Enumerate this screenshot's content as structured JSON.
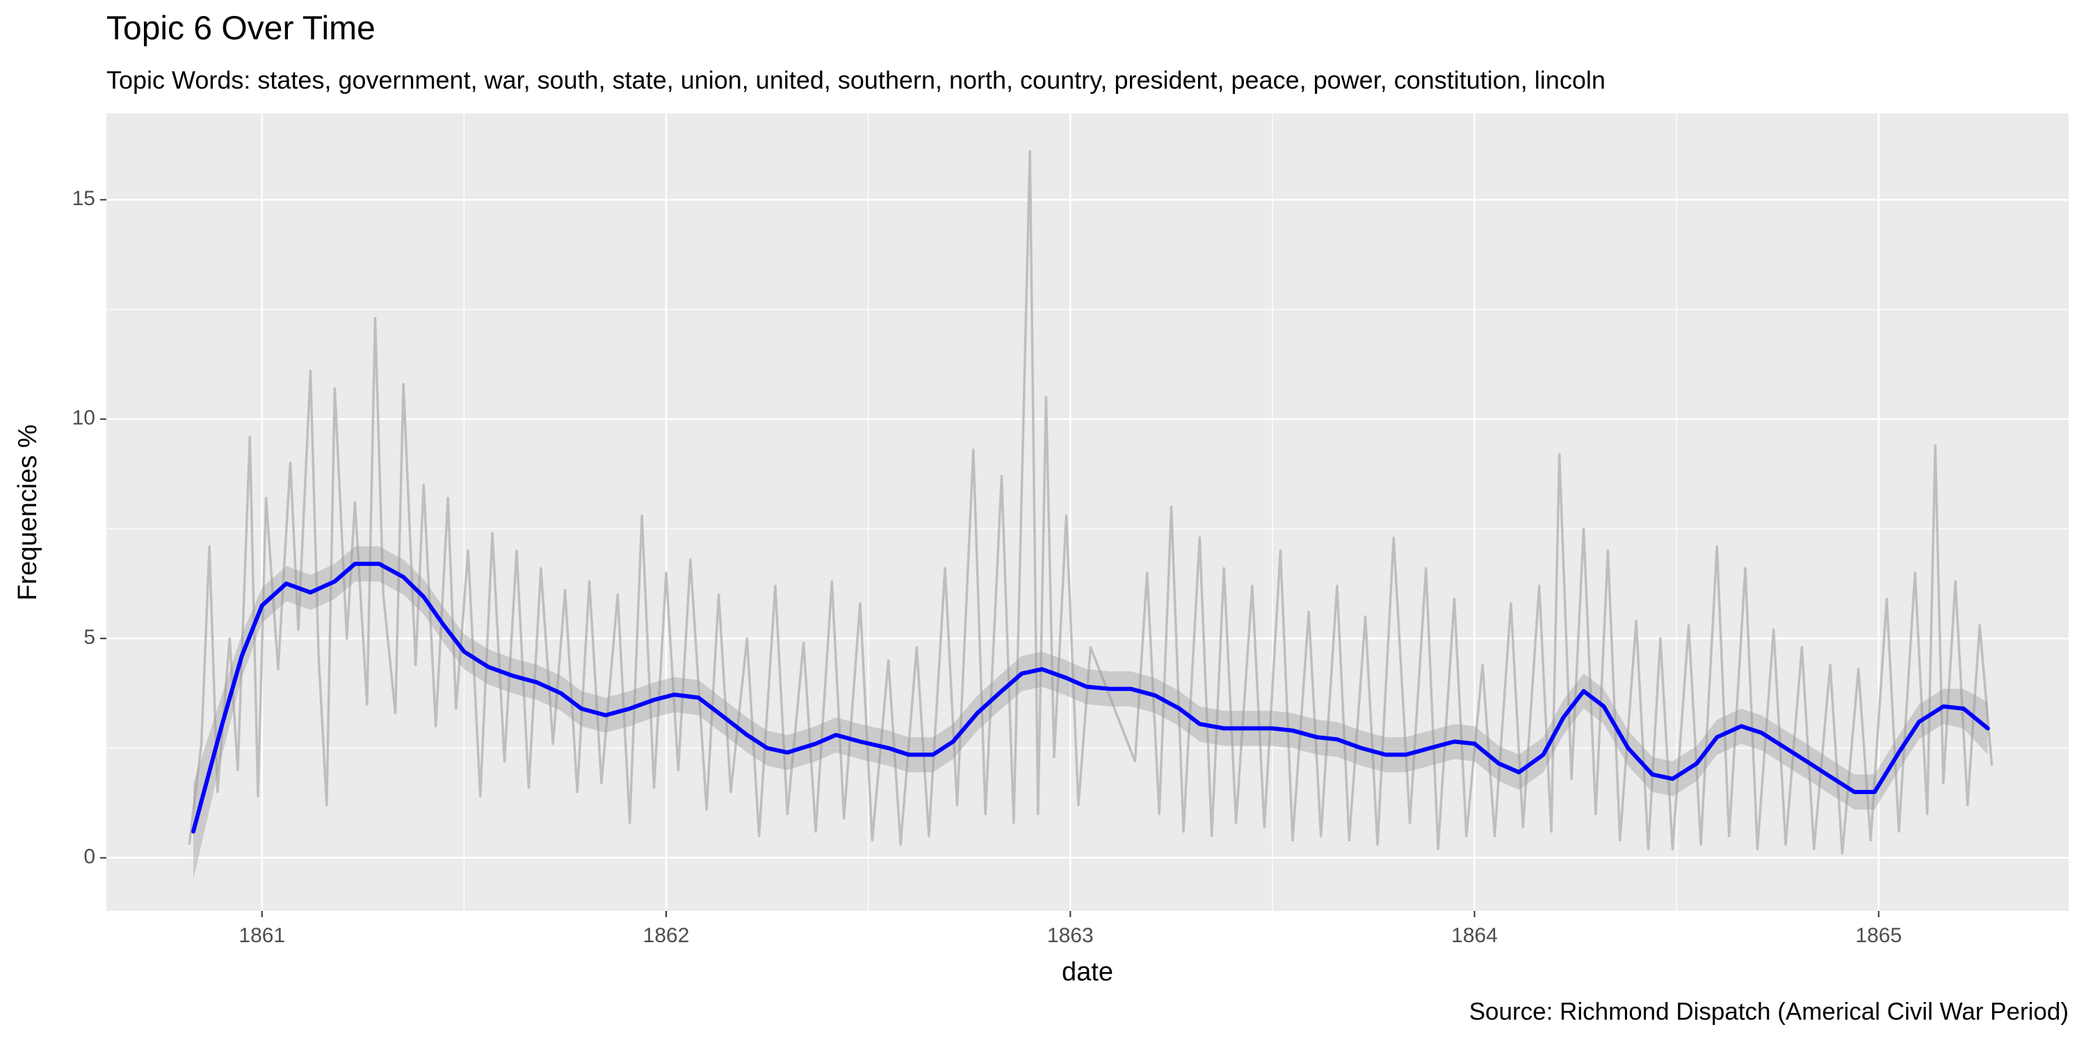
{
  "chart_data": {
    "type": "line",
    "title": "Topic 6 Over Time",
    "subtitle": "Topic Words: states, government, war, south, state, union, united, southern, north, country, president, peace, power, constitution, lincoln",
    "caption": "Source: Richmond Dispatch (Americal Civil War Period)",
    "x_label": "date",
    "y_label": "Frequencies %",
    "xlim": [
      1860.615,
      1865.47
    ],
    "ylim": [
      -1.21,
      16.97
    ],
    "xticks": [
      1861,
      1862,
      1863,
      1864,
      1865
    ],
    "yticks": [
      0,
      5,
      10,
      15
    ],
    "x_minor_ticks": [
      1861.5,
      1862.5,
      1863.5,
      1864.5
    ],
    "y_minor_ticks": [
      2.5,
      7.5,
      12.5
    ],
    "grid": true,
    "raw": {
      "color": "#bebebe",
      "x": [
        1860.82,
        1860.85,
        1860.87,
        1860.89,
        1860.92,
        1860.94,
        1860.97,
        1860.99,
        1861.01,
        1861.04,
        1861.07,
        1861.09,
        1861.12,
        1861.14,
        1861.16,
        1861.18,
        1861.21,
        1861.23,
        1861.26,
        1861.28,
        1861.3,
        1861.33,
        1861.35,
        1861.38,
        1861.4,
        1861.43,
        1861.46,
        1861.48,
        1861.51,
        1861.54,
        1861.57,
        1861.6,
        1861.63,
        1861.66,
        1861.69,
        1861.72,
        1861.75,
        1861.78,
        1861.81,
        1861.84,
        1861.88,
        1861.91,
        1861.94,
        1861.97,
        1862.0,
        1862.03,
        1862.06,
        1862.1,
        1862.13,
        1862.16,
        1862.2,
        1862.23,
        1862.27,
        1862.3,
        1862.34,
        1862.37,
        1862.41,
        1862.44,
        1862.48,
        1862.51,
        1862.55,
        1862.58,
        1862.62,
        1862.65,
        1862.69,
        1862.72,
        1862.76,
        1862.79,
        1862.83,
        1862.86,
        1862.9,
        1862.92,
        1862.94,
        1862.96,
        1862.99,
        1863.02,
        1863.05,
        1863.16,
        1863.19,
        1863.22,
        1863.25,
        1863.28,
        1863.32,
        1863.35,
        1863.38,
        1863.41,
        1863.45,
        1863.48,
        1863.52,
        1863.55,
        1863.59,
        1863.62,
        1863.66,
        1863.69,
        1863.73,
        1863.76,
        1863.8,
        1863.84,
        1863.88,
        1863.91,
        1863.95,
        1863.98,
        1864.02,
        1864.05,
        1864.09,
        1864.12,
        1864.16,
        1864.19,
        1864.21,
        1864.24,
        1864.27,
        1864.3,
        1864.33,
        1864.36,
        1864.4,
        1864.43,
        1864.46,
        1864.49,
        1864.53,
        1864.56,
        1864.6,
        1864.63,
        1864.67,
        1864.7,
        1864.74,
        1864.77,
        1864.81,
        1864.84,
        1864.88,
        1864.91,
        1864.95,
        1864.98,
        1865.02,
        1865.05,
        1865.09,
        1865.12,
        1865.14,
        1865.16,
        1865.19,
        1865.22,
        1865.25,
        1865.28
      ],
      "values": [
        0.3,
        2.6,
        7.1,
        1.5,
        5.0,
        2.0,
        9.6,
        1.4,
        8.2,
        4.3,
        9.0,
        5.2,
        11.1,
        4.6,
        1.2,
        10.7,
        5.0,
        8.1,
        3.5,
        12.3,
        6.0,
        3.3,
        10.8,
        4.4,
        8.5,
        3.0,
        8.2,
        3.4,
        7.0,
        1.4,
        7.4,
        2.2,
        7.0,
        1.6,
        6.6,
        2.6,
        6.1,
        1.5,
        6.3,
        1.7,
        6.0,
        0.8,
        7.8,
        1.6,
        6.5,
        2.0,
        6.8,
        1.1,
        6.0,
        1.5,
        5.0,
        0.5,
        6.2,
        1.0,
        4.9,
        0.6,
        6.3,
        0.9,
        5.8,
        0.4,
        4.5,
        0.3,
        4.8,
        0.5,
        6.6,
        1.2,
        9.3,
        1.0,
        8.7,
        0.8,
        16.1,
        1.0,
        10.5,
        2.3,
        7.8,
        1.2,
        4.8,
        2.2,
        6.5,
        1.0,
        8.0,
        0.6,
        7.3,
        0.5,
        6.6,
        0.8,
        6.2,
        0.7,
        7.0,
        0.4,
        5.6,
        0.5,
        6.2,
        0.4,
        5.5,
        0.3,
        7.3,
        0.8,
        6.6,
        0.2,
        5.9,
        0.5,
        4.4,
        0.5,
        5.8,
        0.7,
        6.2,
        0.6,
        9.2,
        1.8,
        7.5,
        1.0,
        7.0,
        0.4,
        5.4,
        0.2,
        5.0,
        0.2,
        5.3,
        0.3,
        7.1,
        0.5,
        6.6,
        0.2,
        5.2,
        0.3,
        4.8,
        0.2,
        4.4,
        0.1,
        4.3,
        0.4,
        5.9,
        0.6,
        6.5,
        1.0,
        9.4,
        1.7,
        6.3,
        1.2,
        5.3,
        2.1
      ]
    },
    "smooth": {
      "color": "#0000ff",
      "band_color": "#999999",
      "x": [
        1860.83,
        1860.9,
        1860.95,
        1861.0,
        1861.06,
        1861.12,
        1861.18,
        1861.23,
        1861.29,
        1861.35,
        1861.4,
        1861.45,
        1861.5,
        1861.56,
        1861.62,
        1861.68,
        1861.74,
        1861.79,
        1861.85,
        1861.91,
        1861.97,
        1862.02,
        1862.08,
        1862.13,
        1862.2,
        1862.25,
        1862.3,
        1862.37,
        1862.42,
        1862.48,
        1862.55,
        1862.6,
        1862.66,
        1862.71,
        1862.77,
        1862.83,
        1862.88,
        1862.93,
        1862.99,
        1863.04,
        1863.1,
        1863.15,
        1863.21,
        1863.27,
        1863.32,
        1863.38,
        1863.43,
        1863.5,
        1863.55,
        1863.61,
        1863.66,
        1863.72,
        1863.78,
        1863.83,
        1863.89,
        1863.95,
        1864.0,
        1864.06,
        1864.11,
        1864.17,
        1864.22,
        1864.27,
        1864.32,
        1864.38,
        1864.44,
        1864.49,
        1864.55,
        1864.6,
        1864.66,
        1864.71,
        1864.77,
        1864.83,
        1864.88,
        1864.94,
        1864.99,
        1865.05,
        1865.1,
        1865.16,
        1865.21,
        1865.27
      ],
      "values": [
        0.6,
        3.0,
        4.6,
        5.75,
        6.25,
        6.05,
        6.3,
        6.7,
        6.7,
        6.4,
        5.95,
        5.3,
        4.7,
        4.35,
        4.15,
        4.0,
        3.75,
        3.4,
        3.25,
        3.4,
        3.6,
        3.72,
        3.65,
        3.3,
        2.8,
        2.5,
        2.4,
        2.6,
        2.8,
        2.65,
        2.5,
        2.35,
        2.35,
        2.65,
        3.3,
        3.8,
        4.2,
        4.3,
        4.1,
        3.9,
        3.85,
        3.85,
        3.7,
        3.4,
        3.05,
        2.95,
        2.95,
        2.95,
        2.9,
        2.75,
        2.7,
        2.5,
        2.35,
        2.35,
        2.5,
        2.65,
        2.6,
        2.15,
        1.95,
        2.35,
        3.2,
        3.8,
        3.45,
        2.5,
        1.9,
        1.8,
        2.15,
        2.75,
        3.0,
        2.85,
        2.5,
        2.15,
        1.85,
        1.5,
        1.5,
        2.4,
        3.1,
        3.45,
        3.4,
        2.95
      ],
      "lower": [
        -0.5,
        2.3,
        4.1,
        5.35,
        5.85,
        5.65,
        5.9,
        6.3,
        6.3,
        6.0,
        5.55,
        4.9,
        4.3,
        3.95,
        3.75,
        3.6,
        3.35,
        3.0,
        2.85,
        3.0,
        3.2,
        3.32,
        3.25,
        2.9,
        2.4,
        2.1,
        2.0,
        2.2,
        2.4,
        2.25,
        2.1,
        1.95,
        1.95,
        2.25,
        2.9,
        3.4,
        3.8,
        3.9,
        3.7,
        3.5,
        3.45,
        3.45,
        3.3,
        3.0,
        2.65,
        2.55,
        2.55,
        2.55,
        2.5,
        2.35,
        2.3,
        2.1,
        1.95,
        1.95,
        2.1,
        2.25,
        2.2,
        1.75,
        1.55,
        1.95,
        2.8,
        3.4,
        3.05,
        2.1,
        1.5,
        1.4,
        1.75,
        2.35,
        2.6,
        2.45,
        2.1,
        1.75,
        1.45,
        1.1,
        1.1,
        2.0,
        2.7,
        3.05,
        2.95,
        2.35
      ],
      "upper": [
        1.7,
        3.7,
        5.1,
        6.15,
        6.65,
        6.45,
        6.7,
        7.1,
        7.1,
        6.8,
        6.35,
        5.7,
        5.1,
        4.75,
        4.55,
        4.4,
        4.15,
        3.8,
        3.65,
        3.8,
        4.0,
        4.12,
        4.05,
        3.7,
        3.2,
        2.9,
        2.8,
        3.0,
        3.2,
        3.05,
        2.9,
        2.75,
        2.75,
        3.05,
        3.7,
        4.2,
        4.6,
        4.7,
        4.5,
        4.3,
        4.25,
        4.25,
        4.1,
        3.8,
        3.45,
        3.35,
        3.35,
        3.35,
        3.3,
        3.15,
        3.1,
        2.9,
        2.75,
        2.75,
        2.9,
        3.05,
        3.0,
        2.55,
        2.35,
        2.75,
        3.6,
        4.2,
        3.85,
        2.9,
        2.3,
        2.2,
        2.55,
        3.15,
        3.4,
        3.25,
        2.9,
        2.55,
        2.25,
        1.9,
        1.9,
        2.8,
        3.5,
        3.85,
        3.85,
        3.55
      ]
    }
  }
}
